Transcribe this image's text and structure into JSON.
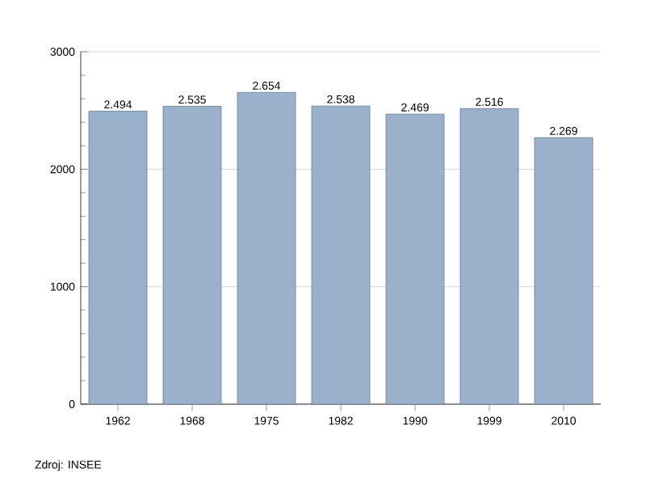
{
  "chart_data": {
    "type": "bar",
    "categories": [
      "1962",
      "1968",
      "1975",
      "1982",
      "1990",
      "1999",
      "2010"
    ],
    "values": [
      2494,
      2535,
      2654,
      2538,
      2469,
      2516,
      2269
    ],
    "value_labels": [
      "2.494",
      "2.535",
      "2.654",
      "2.538",
      "2.469",
      "2.516",
      "2.269"
    ],
    "color": "#9ab1cc",
    "ylim": [
      0,
      3000
    ],
    "yticks": [
      0,
      1000,
      2000,
      3000
    ],
    "grid": "y",
    "annotations": [
      "Zdroj: INSEE"
    ]
  }
}
